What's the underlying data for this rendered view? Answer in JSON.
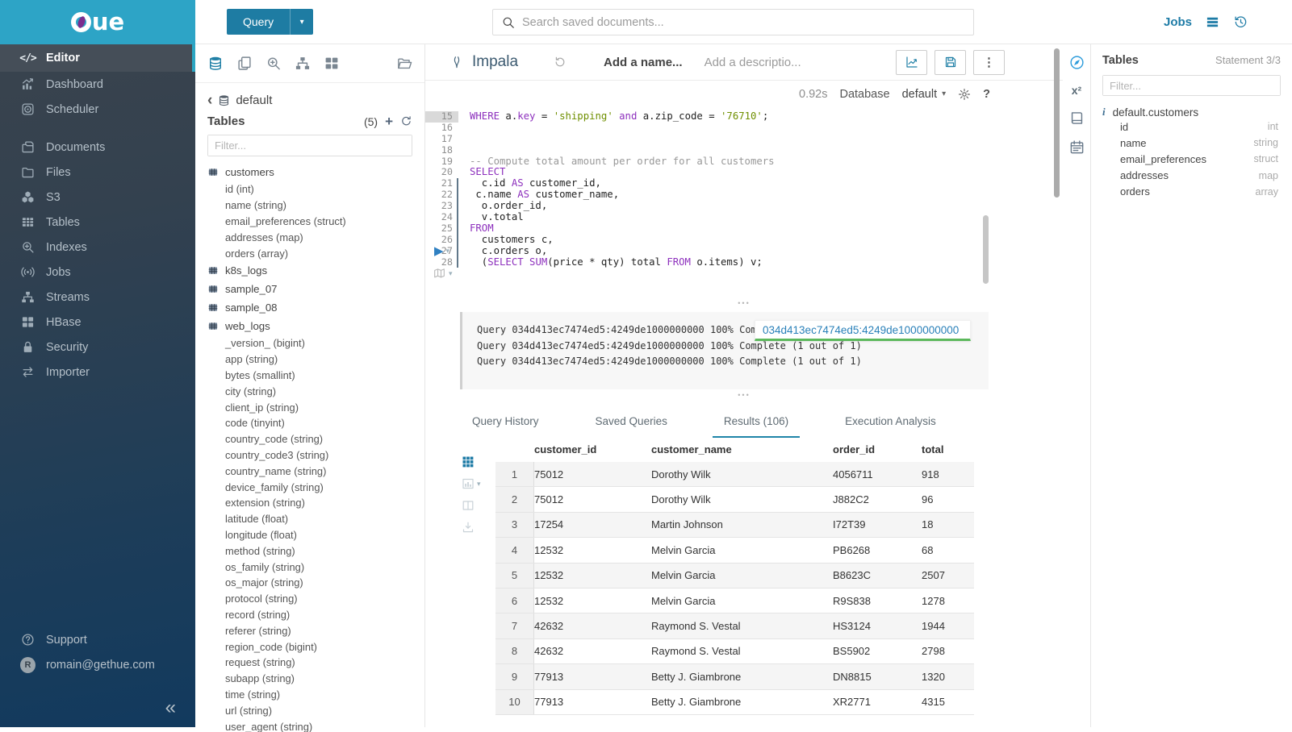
{
  "colors": {
    "brand_cyan": "#2da4c6",
    "primary_blue": "#1e7ca3",
    "tab_accent": "#1f85a8",
    "link_blue": "#2980b9",
    "progress_green": "#5cb85c",
    "keyword_purple": "#8d30bd",
    "string_green": "#6f8f00",
    "sidebar_accent": "#2ba6c3"
  },
  "sidebar": {
    "logo_text": "ue",
    "collapse_icon": "«",
    "items": [
      {
        "label": "Editor",
        "icon": "code-icon",
        "active": true,
        "group_break": false
      },
      {
        "label": "Dashboard",
        "icon": "dashboard-icon",
        "active": false,
        "group_break": false
      },
      {
        "label": "Scheduler",
        "icon": "scheduler-icon",
        "active": false,
        "group_break": false
      },
      {
        "label": "Documents",
        "icon": "documents-icon",
        "active": false,
        "group_break": true
      },
      {
        "label": "Files",
        "icon": "folder-icon",
        "active": false,
        "group_break": false
      },
      {
        "label": "S3",
        "icon": "cubes-icon",
        "active": false,
        "group_break": false
      },
      {
        "label": "Tables",
        "icon": "table-grid-icon",
        "active": false,
        "group_break": false
      },
      {
        "label": "Indexes",
        "icon": "search-plus-icon",
        "active": false,
        "group_break": false
      },
      {
        "label": "Jobs",
        "icon": "broadcast-icon",
        "active": false,
        "group_break": false
      },
      {
        "label": "Streams",
        "icon": "sitemap-icon",
        "active": false,
        "group_break": false
      },
      {
        "label": "HBase",
        "icon": "squares-icon",
        "active": false,
        "group_break": false
      },
      {
        "label": "Security",
        "icon": "lock-icon",
        "active": false,
        "group_break": false
      },
      {
        "label": "Importer",
        "icon": "exchange-icon",
        "active": false,
        "group_break": false
      }
    ],
    "footer": [
      {
        "label": "Support",
        "icon": "help-circle-icon"
      },
      {
        "label": "romain@gethue.com",
        "icon": "avatar-r",
        "avatar_letter": "R"
      }
    ]
  },
  "topbar": {
    "query_button_label": "Query",
    "query_caret": "▾",
    "search_placeholder": "Search saved documents...",
    "jobs_label": "Jobs"
  },
  "left_assist": {
    "action_icons": [
      "database-icon",
      "copy-icon",
      "search-plus-icon",
      "sitemap-icon",
      "squares-icon",
      "folder-open-icon"
    ],
    "back_icon": "‹",
    "database_name": "default",
    "tables_title": "Tables",
    "tables_count": "(5)",
    "plus_icon": "+",
    "filter_placeholder": "Filter...",
    "tables": [
      {
        "name": "customers",
        "columns": [
          "id (int)",
          "name (string)",
          "email_preferences (struct)",
          "addresses (map)",
          "orders (array)"
        ]
      },
      {
        "name": "k8s_logs",
        "columns": []
      },
      {
        "name": "sample_07",
        "columns": []
      },
      {
        "name": "sample_08",
        "columns": []
      },
      {
        "name": "web_logs",
        "columns": [
          "_version_ (bigint)",
          "app (string)",
          "bytes (smallint)",
          "city (string)",
          "client_ip (string)",
          "code (tinyint)",
          "country_code (string)",
          "country_code3 (string)",
          "country_name (string)",
          "device_family (string)",
          "extension (string)",
          "latitude (float)",
          "longitude (float)",
          "method (string)",
          "os_family (string)",
          "os_major (string)",
          "protocol (string)",
          "record (string)",
          "referer (string)",
          "region_code (bigint)",
          "request (string)",
          "subapp (string)",
          "time (string)",
          "url (string)",
          "user_agent (string)"
        ]
      }
    ]
  },
  "editor": {
    "engine": "Impala",
    "name_placeholder": "Add a name...",
    "description_placeholder": "Add a descriptio...",
    "exec_time": "0.92s",
    "database_label": "Database",
    "database_value": "default",
    "database_caret": "▾",
    "help_glyph": "?",
    "play_glyph": "▶",
    "mini_caret": "▾",
    "kebab_glyph": "⋮",
    "code": {
      "first_line": 15,
      "active_line": 15,
      "statement_gutter_lines": [
        21,
        28
      ],
      "lines": [
        [
          {
            "c": "kw",
            "t": "WHERE"
          },
          {
            "c": "",
            "t": " a."
          },
          {
            "c": "kw",
            "t": "key"
          },
          {
            "c": "",
            "t": " = "
          },
          {
            "c": "str",
            "t": "'shipping'"
          },
          {
            "c": "",
            "t": " "
          },
          {
            "c": "kw",
            "t": "and"
          },
          {
            "c": "",
            "t": " a.zip_code = "
          },
          {
            "c": "str",
            "t": "'76710'"
          },
          {
            "c": "",
            "t": ";"
          }
        ],
        [],
        [],
        [],
        [
          {
            "c": "com",
            "t": "-- Compute total amount per order for all customers"
          }
        ],
        [
          {
            "c": "kw",
            "t": "SELECT"
          }
        ],
        [
          {
            "c": "",
            "t": "  c.id "
          },
          {
            "c": "kw",
            "t": "AS"
          },
          {
            "c": "",
            "t": " customer_id,"
          }
        ],
        [
          {
            "c": "",
            "t": " c.name "
          },
          {
            "c": "kw",
            "t": "AS"
          },
          {
            "c": "",
            "t": " customer_name,"
          }
        ],
        [
          {
            "c": "",
            "t": "  o.order_id,"
          }
        ],
        [
          {
            "c": "",
            "t": "  v.total"
          }
        ],
        [
          {
            "c": "kw",
            "t": "FROM"
          }
        ],
        [
          {
            "c": "",
            "t": "  customers c,"
          }
        ],
        [
          {
            "c": "",
            "t": "  c.orders o,"
          }
        ],
        [
          {
            "c": "",
            "t": "  ("
          },
          {
            "c": "kw",
            "t": "SELECT"
          },
          {
            "c": "",
            "t": " "
          },
          {
            "c": "kw",
            "t": "SUM"
          },
          {
            "c": "",
            "t": "(price * qty) total "
          },
          {
            "c": "kw",
            "t": "FROM"
          },
          {
            "c": "",
            "t": " o.items) v;"
          }
        ]
      ]
    }
  },
  "log": {
    "lines": [
      "Query 034d413ec7474ed5:4249de1000000000 100% Complete (1 out of 1)",
      "Query 034d413ec7474ed5:4249de1000000000 100% Complete (1 out of 1)",
      "Query 034d413ec7474ed5:4249de1000000000 100% Complete (1 out of 1)"
    ],
    "overlay_job_id": "034d413ec7474ed5:4249de1000000000"
  },
  "tabs": [
    {
      "label": "Query History",
      "active": false
    },
    {
      "label": "Saved Queries",
      "active": false
    },
    {
      "label": "Results (106)",
      "active": true
    },
    {
      "label": "Execution Analysis",
      "active": false
    }
  ],
  "results": {
    "rail_icons": [
      "results-grid-icon",
      "chart-icon",
      "columns-icon",
      "download-icon"
    ],
    "columns": [
      "customer_id",
      "customer_name",
      "order_id",
      "total"
    ],
    "rows": [
      [
        "1",
        "75012",
        "Dorothy Wilk",
        "4056711",
        "918"
      ],
      [
        "2",
        "75012",
        "Dorothy Wilk",
        "J882C2",
        "96"
      ],
      [
        "3",
        "17254",
        "Martin Johnson",
        "I72T39",
        "18"
      ],
      [
        "4",
        "12532",
        "Melvin Garcia",
        "PB6268",
        "68"
      ],
      [
        "5",
        "12532",
        "Melvin Garcia",
        "B8623C",
        "2507"
      ],
      [
        "6",
        "12532",
        "Melvin Garcia",
        "R9S838",
        "1278"
      ],
      [
        "7",
        "42632",
        "Raymond S. Vestal",
        "HS3124",
        "1944"
      ],
      [
        "8",
        "42632",
        "Raymond S. Vestal",
        "BS5902",
        "2798"
      ],
      [
        "9",
        "77913",
        "Betty J. Giambrone",
        "DN8815",
        "1320"
      ],
      [
        "10",
        "77913",
        "Betty J. Giambrone",
        "XR2771",
        "4315"
      ]
    ]
  },
  "right_rail_icons": [
    "compass-icon",
    "superscript-icon",
    "book-icon",
    "calendar-icon"
  ],
  "right_assist": {
    "title": "Tables",
    "statement_counter": "Statement 3/3",
    "filter_placeholder": "Filter...",
    "info_icon": "i",
    "table_name": "default.customers",
    "columns": [
      {
        "name": "id",
        "type": "int"
      },
      {
        "name": "name",
        "type": "string"
      },
      {
        "name": "email_preferences",
        "type": "struct"
      },
      {
        "name": "addresses",
        "type": "map"
      },
      {
        "name": "orders",
        "type": "array"
      }
    ]
  }
}
